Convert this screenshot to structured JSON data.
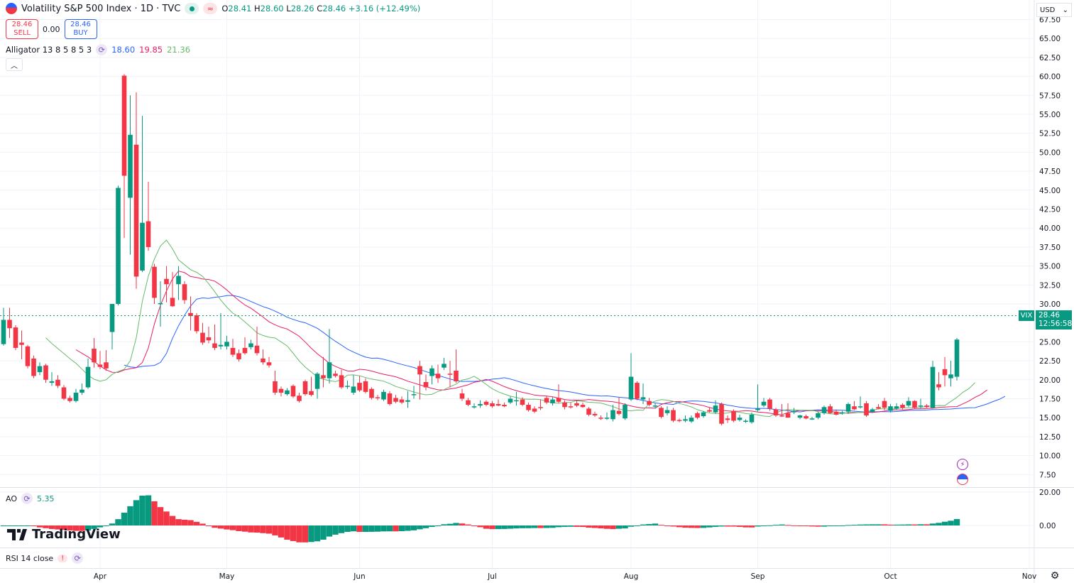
{
  "header": {
    "symbol_title": "Volatility S&P 500 Index · 1D · TVC",
    "open_label": "O",
    "open": "28.41",
    "high_label": "H",
    "high": "28.60",
    "low_label": "L",
    "low": "28.26",
    "close_label": "C",
    "close": "28.46",
    "change": "+3.16 (+12.49%)"
  },
  "trade": {
    "sell_price": "28.46",
    "sell_label": "SELL",
    "spread": "0.00",
    "buy_price": "28.46",
    "buy_label": "BUY"
  },
  "alligator": {
    "label": "Alligator 13 8 5 8 5 3",
    "jaw": "18.60",
    "teeth": "19.85",
    "lips": "21.36",
    "params": {
      "jaw_len": 13,
      "jaw_off": 8,
      "teeth_len": 8,
      "teeth_off": 5,
      "lips_len": 5,
      "lips_off": 3
    }
  },
  "ao": {
    "label": "AO",
    "value": "5.35"
  },
  "rsi": {
    "label": "RSI 14 close"
  },
  "currency": "USD",
  "last": {
    "ticker": "VIX",
    "price": "28.46",
    "countdown": "12:56:58"
  },
  "brand": "TradingView",
  "colors": {
    "up": "#089981",
    "down": "#f23645",
    "jaw": "#2962ff",
    "teeth": "#e91e63",
    "lips": "#66bb6a",
    "grid": "#f0f3fa"
  },
  "chart_data": {
    "type": "candlestick",
    "title": "Volatility S&P 500 Index · 1D · TVC",
    "ylim": [
      6.25,
      68.75
    ],
    "y_ticks": [
      "67.50",
      "65.00",
      "62.50",
      "60.00",
      "57.50",
      "55.00",
      "52.50",
      "50.00",
      "47.50",
      "45.00",
      "42.50",
      "40.00",
      "37.50",
      "35.00",
      "32.50",
      "30.00",
      "25.00",
      "22.50",
      "20.00",
      "17.50",
      "15.00",
      "12.50",
      "10.00",
      "7.50"
    ],
    "ao_ticks": [
      "20.00",
      "0.00"
    ],
    "x_ticks": [
      {
        "label": "Apr",
        "index": 16
      },
      {
        "label": "May",
        "index": 37
      },
      {
        "label": "Jun",
        "index": 59
      },
      {
        "label": "Jul",
        "index": 81
      },
      {
        "label": "Aug",
        "index": 104
      },
      {
        "label": "Sep",
        "index": 125
      },
      {
        "label": "Oct",
        "index": 147
      },
      {
        "label": "Nov",
        "index": 170
      }
    ],
    "current_price": 28.46,
    "candles_ohlc": [
      [
        24.7,
        29.5,
        24.5,
        27.9
      ],
      [
        27.9,
        29.5,
        25.5,
        26.8
      ],
      [
        26.9,
        27.2,
        23.9,
        24.2
      ],
      [
        24.9,
        26.5,
        22.7,
        24.6
      ],
      [
        24.4,
        24.6,
        21.5,
        21.8
      ],
      [
        22.8,
        23.2,
        20.2,
        20.5
      ],
      [
        21.0,
        22.3,
        20.6,
        21.8
      ],
      [
        21.9,
        22.1,
        19.6,
        20.0
      ],
      [
        19.6,
        21.0,
        19.2,
        19.8
      ],
      [
        20.0,
        20.6,
        18.9,
        19.2
      ],
      [
        19.0,
        19.3,
        17.3,
        17.5
      ],
      [
        17.6,
        17.9,
        17.0,
        17.2
      ],
      [
        17.2,
        18.8,
        17.0,
        18.3
      ],
      [
        18.3,
        19.5,
        18.0,
        18.7
      ],
      [
        19.0,
        22.8,
        18.8,
        21.7
      ],
      [
        24.1,
        25.5,
        21.6,
        22.3
      ],
      [
        22.0,
        23.8,
        21.4,
        21.7
      ],
      [
        22.3,
        23.9,
        21.2,
        21.5
      ],
      [
        26.3,
        30.0,
        24.0,
        30.0
      ],
      [
        30.0,
        45.6,
        29.8,
        45.3
      ],
      [
        60.1,
        60.3,
        38.7,
        46.9
      ],
      [
        44.0,
        57.5,
        36.5,
        52.3
      ],
      [
        51.0,
        57.9,
        32.0,
        33.6
      ],
      [
        34.4,
        54.8,
        34.2,
        40.7
      ],
      [
        40.9,
        46.1,
        37.0,
        37.5
      ],
      [
        34.9,
        35.3,
        30.0,
        30.8
      ],
      [
        30.0,
        33.0,
        27.0,
        30.1
      ],
      [
        33.3,
        35.0,
        30.2,
        32.6
      ],
      [
        30.8,
        34.2,
        29.6,
        29.7
      ],
      [
        32.6,
        35.0,
        30.5,
        33.7
      ],
      [
        32.6,
        33.0,
        30.0,
        30.5
      ],
      [
        28.8,
        31.0,
        26.5,
        28.4
      ],
      [
        28.5,
        28.8,
        26.1,
        26.4
      ],
      [
        26.2,
        27.5,
        24.6,
        24.9
      ],
      [
        25.6,
        27.0,
        24.8,
        25.2
      ],
      [
        24.8,
        27.3,
        23.9,
        24.2
      ],
      [
        24.4,
        28.8,
        24.0,
        24.6
      ],
      [
        24.4,
        25.8,
        24.0,
        25.0
      ],
      [
        24.2,
        25.4,
        23.0,
        23.3
      ],
      [
        23.5,
        24.0,
        22.4,
        22.7
      ],
      [
        24.2,
        25.6,
        23.3,
        23.5
      ],
      [
        24.3,
        25.3,
        24.0,
        24.8
      ],
      [
        24.5,
        27.0,
        23.2,
        23.5
      ],
      [
        22.8,
        24.0,
        22.0,
        22.3
      ],
      [
        22.3,
        23.0,
        21.6,
        21.9
      ],
      [
        19.8,
        21.2,
        18.0,
        18.3
      ],
      [
        18.8,
        19.1,
        17.8,
        18.3
      ],
      [
        18.1,
        18.9,
        17.9,
        18.6
      ],
      [
        19.2,
        19.4,
        17.6,
        17.8
      ],
      [
        17.9,
        18.3,
        17.0,
        17.2
      ],
      [
        19.8,
        20.0,
        17.9,
        18.1
      ],
      [
        18.5,
        20.4,
        17.8,
        18.0
      ],
      [
        18.8,
        21.0,
        17.5,
        20.8
      ],
      [
        20.6,
        23.0,
        19.0,
        20.2
      ],
      [
        20.2,
        26.7,
        19.5,
        22.3
      ],
      [
        20.8,
        21.2,
        20.3,
        20.5
      ],
      [
        20.6,
        21.3,
        18.8,
        19.0
      ],
      [
        19.2,
        19.9,
        18.8,
        19.2
      ],
      [
        18.3,
        20.6,
        18.0,
        19.1
      ],
      [
        19.6,
        20.5,
        18.4,
        18.6
      ],
      [
        19.8,
        20.2,
        18.2,
        18.4
      ],
      [
        18.8,
        19.0,
        17.4,
        17.6
      ],
      [
        17.7,
        18.0,
        17.3,
        17.6
      ],
      [
        17.4,
        18.7,
        17.2,
        18.4
      ],
      [
        18.2,
        18.5,
        16.6,
        16.8
      ],
      [
        17.6,
        18.0,
        16.9,
        17.1
      ],
      [
        17.4,
        17.8,
        16.8,
        17.0
      ],
      [
        17.1,
        18.5,
        16.3,
        17.3
      ],
      [
        18.0,
        19.2,
        17.5,
        18.1
      ],
      [
        21.8,
        22.5,
        17.4,
        20.7
      ],
      [
        19.7,
        20.7,
        18.6,
        19.0
      ],
      [
        20.5,
        21.9,
        19.4,
        21.5
      ],
      [
        20.8,
        22.0,
        19.6,
        20.2
      ],
      [
        21.6,
        22.9,
        21.3,
        22.1
      ],
      [
        20.8,
        22.5,
        19.0,
        20.7
      ],
      [
        21.2,
        24.0,
        19.6,
        19.8
      ],
      [
        18.2,
        18.8,
        17.2,
        17.5
      ],
      [
        17.3,
        17.6,
        16.5,
        16.7
      ],
      [
        16.5,
        16.9,
        16.2,
        16.5
      ],
      [
        16.6,
        17.3,
        16.3,
        16.8
      ],
      [
        17.1,
        17.3,
        16.5,
        16.7
      ],
      [
        16.9,
        17.2,
        16.3,
        16.5
      ],
      [
        16.8,
        17.4,
        16.5,
        16.6
      ],
      [
        16.7,
        17.0,
        16.4,
        16.5
      ],
      [
        17.0,
        17.8,
        16.8,
        17.5
      ],
      [
        17.3,
        18.4,
        16.6,
        17.3
      ],
      [
        17.4,
        17.7,
        16.5,
        16.7
      ],
      [
        16.7,
        17.0,
        15.8,
        16.0
      ],
      [
        16.2,
        16.5,
        15.6,
        15.8
      ],
      [
        16.4,
        17.4,
        16.0,
        16.3
      ],
      [
        17.6,
        17.9,
        16.8,
        17.0
      ],
      [
        16.9,
        17.7,
        16.6,
        17.4
      ],
      [
        17.6,
        19.4,
        16.9,
        17.1
      ],
      [
        17.0,
        17.3,
        16.1,
        16.4
      ],
      [
        16.5,
        17.0,
        16.2,
        16.4
      ],
      [
        16.9,
        17.3,
        16.4,
        16.6
      ],
      [
        16.7,
        17.0,
        16.3,
        16.4
      ],
      [
        16.2,
        16.4,
        15.2,
        15.4
      ],
      [
        15.5,
        15.8,
        15.1,
        15.3
      ],
      [
        15.0,
        15.3,
        14.7,
        14.9
      ],
      [
        14.9,
        15.7,
        14.7,
        15.0
      ],
      [
        14.8,
        16.7,
        14.5,
        16.0
      ],
      [
        15.9,
        17.7,
        15.3,
        15.5
      ],
      [
        14.9,
        16.9,
        14.7,
        16.7
      ],
      [
        17.4,
        23.5,
        17.2,
        20.4
      ],
      [
        19.6,
        19.8,
        17.3,
        17.5
      ],
      [
        17.4,
        19.5,
        16.8,
        17.7
      ],
      [
        17.2,
        17.6,
        16.5,
        16.7
      ],
      [
        16.5,
        16.9,
        16.2,
        16.6
      ],
      [
        16.3,
        16.5,
        14.9,
        15.1
      ],
      [
        15.6,
        16.5,
        15.3,
        16.0
      ],
      [
        16.0,
        16.3,
        14.4,
        14.6
      ],
      [
        14.7,
        14.9,
        14.4,
        14.6
      ],
      [
        14.6,
        15.3,
        14.4,
        14.8
      ],
      [
        14.5,
        15.3,
        14.3,
        15.0
      ],
      [
        15.6,
        15.8,
        14.8,
        15.0
      ],
      [
        15.2,
        15.9,
        15.0,
        15.7
      ],
      [
        16.0,
        16.3,
        15.7,
        15.8
      ],
      [
        15.7,
        17.3,
        15.5,
        16.6
      ],
      [
        16.8,
        17.0,
        14.0,
        14.2
      ],
      [
        14.9,
        15.3,
        14.3,
        14.7
      ],
      [
        15.9,
        16.1,
        14.4,
        14.6
      ],
      [
        14.7,
        15.4,
        14.5,
        15.0
      ],
      [
        14.5,
        14.8,
        14.3,
        14.6
      ],
      [
        14.4,
        15.7,
        14.2,
        15.4
      ],
      [
        16.0,
        19.4,
        15.8,
        16.2
      ],
      [
        16.6,
        17.6,
        16.4,
        17.1
      ],
      [
        17.4,
        17.6,
        15.9,
        16.2
      ],
      [
        16.1,
        16.3,
        15.1,
        15.3
      ],
      [
        15.3,
        16.8,
        15.1,
        15.2
      ],
      [
        15.6,
        16.9,
        15.0,
        15.0
      ],
      [
        15.7,
        16.3,
        15.5,
        15.9
      ],
      [
        15.0,
        15.4,
        14.8,
        15.3
      ],
      [
        15.2,
        15.4,
        14.8,
        14.9
      ],
      [
        14.8,
        15.1,
        14.7,
        14.9
      ],
      [
        15.0,
        15.8,
        14.8,
        15.6
      ],
      [
        15.6,
        16.6,
        15.4,
        16.4
      ],
      [
        16.5,
        16.8,
        15.5,
        15.6
      ],
      [
        15.8,
        16.1,
        15.3,
        15.4
      ],
      [
        15.6,
        15.9,
        15.4,
        15.7
      ],
      [
        15.8,
        17.0,
        15.5,
        16.8
      ],
      [
        16.5,
        17.2,
        16.0,
        16.1
      ],
      [
        16.4,
        17.8,
        16.2,
        16.5
      ],
      [
        16.9,
        17.2,
        15.1,
        15.3
      ],
      [
        15.8,
        16.3,
        15.6,
        16.1
      ],
      [
        16.4,
        16.8,
        16.1,
        16.2
      ],
      [
        17.2,
        17.6,
        16.0,
        16.3
      ],
      [
        15.9,
        16.8,
        15.7,
        16.5
      ],
      [
        16.2,
        16.9,
        16.0,
        16.5
      ],
      [
        16.7,
        16.9,
        16.1,
        16.3
      ],
      [
        16.6,
        17.7,
        16.4,
        17.2
      ],
      [
        17.2,
        17.3,
        16.2,
        16.3
      ],
      [
        16.5,
        17.5,
        16.2,
        16.6
      ],
      [
        16.6,
        16.8,
        16.3,
        16.4
      ],
      [
        16.3,
        22.5,
        16.2,
        21.7
      ],
      [
        19.4,
        21.0,
        18.6,
        19.0
      ],
      [
        21.4,
        23.0,
        19.1,
        20.6
      ],
      [
        20.2,
        22.5,
        19.1,
        20.7
      ],
      [
        20.4,
        25.5,
        19.9,
        25.3
      ]
    ]
  }
}
